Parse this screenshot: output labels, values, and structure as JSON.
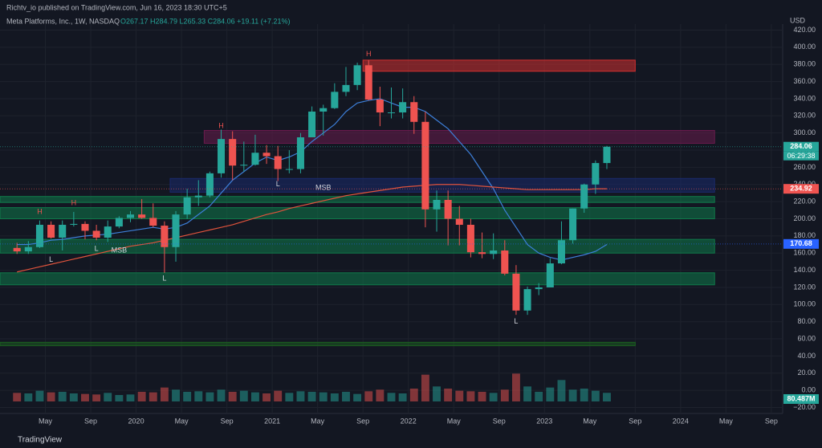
{
  "header": {
    "publisher": "Richtv_io published on TradingView.com, Jun 16, 2023 18:30 UTC+5",
    "symbol": "Meta Platforms, Inc., 1W, NASDAQ",
    "ohlc": "O267.17 H284.79 L265.33 C284.06 +19.11 (+7.21%)",
    "currency": "USD",
    "footer": "TradingView"
  },
  "chart_data": {
    "type": "candlestick",
    "x": [
      "2019-02",
      "2019-03",
      "2019-04",
      "2019-05",
      "2019-06",
      "2019-07",
      "2019-08",
      "2019-09",
      "2019-10",
      "2019-11",
      "2019-12",
      "2020-01",
      "2020-02",
      "2020-03",
      "2020-04",
      "2020-05",
      "2020-06",
      "2020-07",
      "2020-08",
      "2020-09",
      "2020-10",
      "2020-11",
      "2020-12",
      "2021-01",
      "2021-02",
      "2021-03",
      "2021-04",
      "2021-05",
      "2021-06",
      "2021-07",
      "2021-08",
      "2021-09",
      "2021-10",
      "2021-11",
      "2021-12",
      "2022-01",
      "2022-02",
      "2022-03",
      "2022-04",
      "2022-05",
      "2022-06",
      "2022-07",
      "2022-08",
      "2022-09",
      "2022-10",
      "2022-11",
      "2022-12",
      "2023-01",
      "2023-02",
      "2023-03",
      "2023-04",
      "2023-05",
      "2023-06"
    ],
    "open": [
      166,
      162,
      167,
      193,
      178,
      193,
      194,
      186,
      178,
      191,
      201,
      205,
      201,
      192,
      167,
      205,
      225,
      227,
      253,
      293,
      262,
      263,
      277,
      273,
      258,
      258,
      295,
      325,
      329,
      348,
      356,
      379,
      339,
      324,
      324,
      336,
      313,
      211,
      222,
      200,
      193,
      161,
      159,
      163,
      136,
      93,
      118,
      120,
      148,
      175,
      212,
      240,
      265
    ],
    "high": [
      172,
      174,
      198,
      197,
      198,
      208,
      197,
      193,
      198,
      203,
      209,
      223,
      218,
      197,
      209,
      235,
      245,
      255,
      304,
      302,
      290,
      298,
      286,
      285,
      280,
      300,
      331,
      333,
      358,
      377,
      382,
      385,
      354,
      353,
      352,
      343,
      325,
      233,
      233,
      215,
      200,
      184,
      183,
      175,
      146,
      121,
      125,
      154,
      197,
      212,
      241,
      268,
      285
    ],
    "low": [
      159,
      159,
      166,
      177,
      163,
      191,
      176,
      175,
      173,
      189,
      196,
      200,
      190,
      137,
      150,
      200,
      215,
      225,
      248,
      245,
      255,
      262,
      264,
      244,
      253,
      253,
      295,
      297,
      328,
      343,
      350,
      338,
      308,
      317,
      317,
      299,
      190,
      185,
      169,
      169,
      155,
      154,
      153,
      134,
      88,
      88,
      111,
      122,
      147,
      171,
      207,
      229,
      258
    ],
    "close": [
      162,
      167,
      193,
      178,
      193,
      194,
      186,
      178,
      191,
      201,
      205,
      201,
      192,
      167,
      205,
      225,
      227,
      253,
      293,
      262,
      263,
      277,
      273,
      258,
      258,
      295,
      325,
      329,
      348,
      356,
      379,
      339,
      324,
      324,
      336,
      313,
      211,
      222,
      200,
      193,
      161,
      159,
      163,
      136,
      93,
      118,
      120,
      148,
      175,
      212,
      240,
      265,
      284
    ],
    "volume": [
      80,
      75,
      100,
      85,
      90,
      75,
      70,
      65,
      80,
      60,
      65,
      90,
      85,
      130,
      110,
      90,
      95,
      85,
      110,
      90,
      100,
      85,
      75,
      100,
      80,
      95,
      90,
      85,
      75,
      90,
      70,
      95,
      110,
      80,
      75,
      120,
      250,
      140,
      120,
      100,
      95,
      90,
      80,
      110,
      260,
      140,
      90,
      130,
      200,
      110,
      120,
      100,
      80.487
    ],
    "volume_label": "80.487M",
    "volume_ylim": [
      0,
      300
    ],
    "up_color": "#26a69a",
    "down_color": "#ef5350",
    "series": [
      {
        "color": "#3d7fd9",
        "values": [
          170,
          170,
          172,
          175,
          176,
          178,
          180,
          181,
          182,
          184,
          186,
          188,
          190,
          188,
          190,
          195,
          205,
          215,
          230,
          245,
          255,
          265,
          272,
          268,
          272,
          278,
          290,
          300,
          310,
          325,
          335,
          338,
          340,
          335,
          330,
          330,
          325,
          315,
          305,
          290,
          275,
          255,
          235,
          210,
          190,
          170,
          160,
          155,
          152,
          155,
          158,
          162,
          170
        ]
      },
      {
        "color": "#e0533c",
        "values": [
          138,
          141,
          144,
          147,
          150,
          153,
          156,
          159,
          162,
          165,
          168,
          170,
          172,
          175,
          178,
          181,
          184,
          187,
          190,
          193,
          197,
          201,
          205,
          208,
          212,
          215,
          218,
          221,
          224,
          227,
          229,
          231,
          233,
          235,
          237,
          238,
          239,
          240,
          240,
          240,
          239,
          238,
          237,
          236,
          235,
          234,
          234,
          234,
          234,
          234,
          234,
          235,
          235
        ]
      }
    ],
    "zones": [
      {
        "from": "2021-09",
        "to": "2023-09",
        "y": [
          372,
          385
        ],
        "color": "#d32f2f"
      },
      {
        "from": "2020-07",
        "to": "2024-04",
        "y": [
          288,
          303
        ],
        "color": "#6a1b4d"
      },
      {
        "from": "2020-04",
        "to": "2024-04",
        "y": [
          231,
          247
        ],
        "color": "#1a2a6c"
      },
      {
        "from": "2019-01",
        "to": "2024-04",
        "y": [
          219,
          226
        ],
        "color": "#0f7a4a"
      },
      {
        "from": "2019-01",
        "to": "2024-04",
        "y": [
          200,
          213
        ],
        "color": "#0f7a4a"
      },
      {
        "from": "2019-01",
        "to": "2024-04",
        "y": [
          160,
          176
        ],
        "color": "#0f7a4a"
      },
      {
        "from": "2019-01",
        "to": "2024-04",
        "y": [
          123,
          137
        ],
        "color": "#0f7a4a"
      },
      {
        "from": "2019-01",
        "to": "2023-09",
        "y": [
          52,
          56
        ],
        "color": "#1b5e20"
      }
    ],
    "annotations": [
      {
        "text": "H",
        "x": "2019-04",
        "y": 208
      },
      {
        "text": "H",
        "x": "2019-07",
        "y": 218
      },
      {
        "text": "L",
        "x": "2019-05",
        "y": 152
      },
      {
        "text": "L",
        "x": "2019-09",
        "y": 165
      },
      {
        "text": "MSB",
        "x": "2019-11",
        "y": 163
      },
      {
        "text": "L",
        "x": "2020-03",
        "y": 130
      },
      {
        "text": "H",
        "x": "2020-08",
        "y": 308
      },
      {
        "text": "L",
        "x": "2021-01",
        "y": 240
      },
      {
        "text": "MSB",
        "x": "2021-05",
        "y": 236
      },
      {
        "text": "H",
        "x": "2021-09",
        "y": 392
      },
      {
        "text": "L",
        "x": "2022-10",
        "y": 80
      }
    ],
    "price_labels": [
      {
        "value": 284.06,
        "label": "284.06",
        "color": "#26a69a"
      },
      {
        "value": 234.92,
        "label": "234.92",
        "color": "#ef5350"
      },
      {
        "value": 170.68,
        "label": "170.68",
        "color": "#2962ff"
      }
    ],
    "countdown": "06:29:38",
    "xlim": [
      "2019-01",
      "2024-10"
    ],
    "xticks": [
      {
        "value": "2019-05",
        "label": "May"
      },
      {
        "value": "2019-09",
        "label": "Sep"
      },
      {
        "value": "2020-01",
        "label": "2020"
      },
      {
        "value": "2020-05",
        "label": "May"
      },
      {
        "value": "2020-09",
        "label": "Sep"
      },
      {
        "value": "2021-01",
        "label": "2021"
      },
      {
        "value": "2021-05",
        "label": "May"
      },
      {
        "value": "2021-09",
        "label": "Sep"
      },
      {
        "value": "2022-01",
        "label": "2022"
      },
      {
        "value": "2022-05",
        "label": "May"
      },
      {
        "value": "2022-09",
        "label": "Sep"
      },
      {
        "value": "2023-01",
        "label": "2023"
      },
      {
        "value": "2023-05",
        "label": "May"
      },
      {
        "value": "2023-09",
        "label": "Sep"
      },
      {
        "value": "2024-01",
        "label": "2024"
      },
      {
        "value": "2024-05",
        "label": "May"
      },
      {
        "value": "2024-09",
        "label": "Sep"
      }
    ],
    "ylim": [
      -27,
      427
    ],
    "yticks": [
      {
        "value": -20,
        "label": "−20.00"
      },
      {
        "value": 0,
        "label": "0.00"
      },
      {
        "value": 20,
        "label": "20.00"
      },
      {
        "value": 40,
        "label": "40.00"
      },
      {
        "value": 60,
        "label": "60.00"
      },
      {
        "value": 80,
        "label": "80.00"
      },
      {
        "value": 100,
        "label": "100.00"
      },
      {
        "value": 120,
        "label": "120.00"
      },
      {
        "value": 140,
        "label": "140.00"
      },
      {
        "value": 160,
        "label": "160.00"
      },
      {
        "value": 180,
        "label": "180.00"
      },
      {
        "value": 200,
        "label": "200.00"
      },
      {
        "value": 220,
        "label": "220.00"
      },
      {
        "value": 240,
        "label": "240.00"
      },
      {
        "value": 260,
        "label": "260.00"
      },
      {
        "value": 280,
        "label": "280.00"
      },
      {
        "value": 300,
        "label": "300.00"
      },
      {
        "value": 320,
        "label": "320.00"
      },
      {
        "value": 340,
        "label": "340.00"
      },
      {
        "value": 360,
        "label": "360.00"
      },
      {
        "value": 380,
        "label": "380.00"
      },
      {
        "value": 400,
        "label": "400.00"
      },
      {
        "value": 420,
        "label": "420.00"
      }
    ],
    "grid": true
  }
}
